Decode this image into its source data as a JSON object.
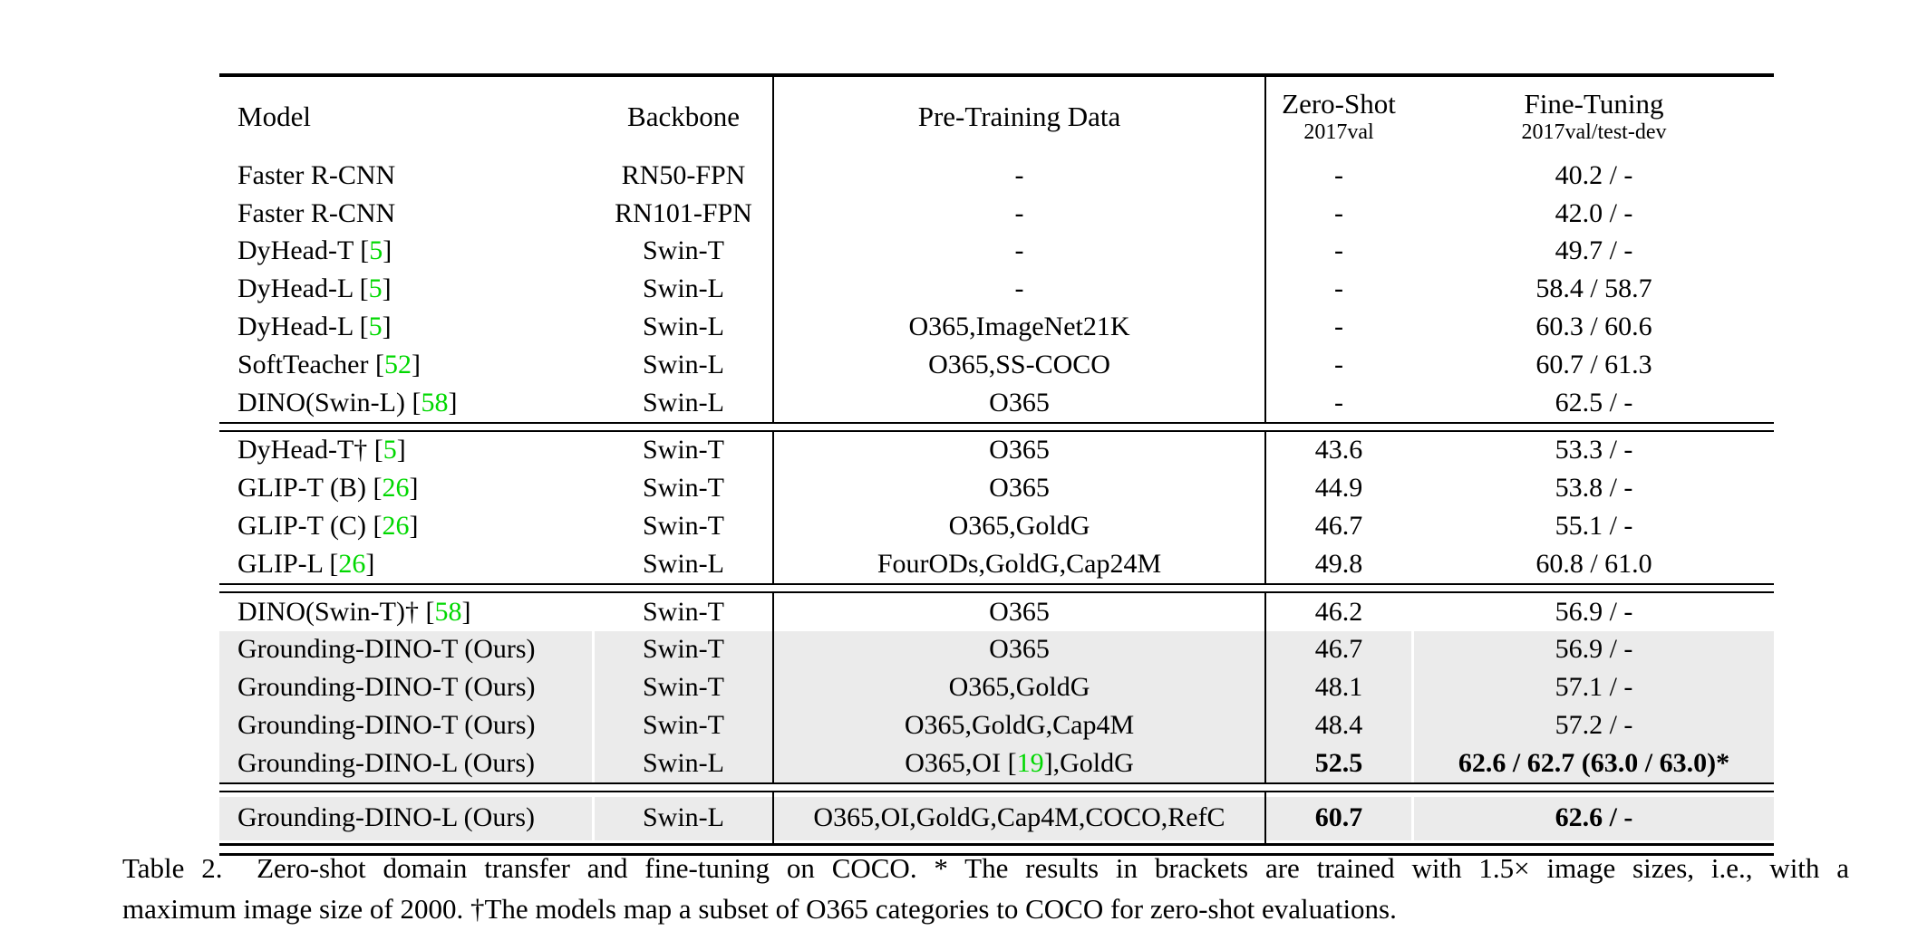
{
  "colors": {
    "citation_green": "#00d800",
    "row_highlight": "#ebebeb",
    "rule": "#000000"
  },
  "table": {
    "header": {
      "model": "Model",
      "backbone": "Backbone",
      "pretrain": "Pre-Training Data",
      "zeroshot": {
        "line1": "Zero-Shot",
        "line2": "2017val"
      },
      "finetune": {
        "line1": "Fine-Tuning",
        "line2": "2017val/test-dev"
      }
    },
    "blocks": [
      {
        "separate": false,
        "rows": [
          {
            "model": "Faster R-CNN",
            "backbone": "RN50-FPN",
            "pretrain": "-",
            "zeroshot": "-",
            "finetune": "40.2 / -"
          },
          {
            "model": "Faster R-CNN",
            "backbone": "RN101-FPN",
            "pretrain": "-",
            "zeroshot": "-",
            "finetune": "42.0 / -"
          },
          {
            "model": "DyHead-T [[5]]",
            "backbone": "Swin-T",
            "pretrain": "-",
            "zeroshot": "-",
            "finetune": "49.7 / -"
          },
          {
            "model": "DyHead-L [[5]]",
            "backbone": "Swin-L",
            "pretrain": "-",
            "zeroshot": "-",
            "finetune": "58.4 / 58.7"
          },
          {
            "model": "DyHead-L [[5]]",
            "backbone": "Swin-L",
            "pretrain": "O365,ImageNet21K",
            "zeroshot": "-",
            "finetune": "60.3 / 60.6"
          },
          {
            "model": "SoftTeacher [[52]]",
            "backbone": "Swin-L",
            "pretrain": "O365,SS-COCO",
            "zeroshot": "-",
            "finetune": "60.7 / 61.3"
          },
          {
            "model": "DINO(Swin-L) [[58]]",
            "backbone": "Swin-L",
            "pretrain": "O365",
            "zeroshot": "-",
            "finetune": "62.5 / -"
          }
        ]
      },
      {
        "separate": false,
        "rows": [
          {
            "model": "DyHead-T† [[5]]",
            "backbone": "Swin-T",
            "pretrain": "O365",
            "zeroshot": "43.6",
            "finetune": "53.3 / -"
          },
          {
            "model": "GLIP-T (B) [[26]]",
            "backbone": "Swin-T",
            "pretrain": "O365",
            "zeroshot": "44.9",
            "finetune": "53.8 / -"
          },
          {
            "model": "GLIP-T (C) [[26]]",
            "backbone": "Swin-T",
            "pretrain": "O365,GoldG",
            "zeroshot": "46.7",
            "finetune": "55.1 / -"
          },
          {
            "model": "GLIP-L [[26]]",
            "backbone": "Swin-L",
            "pretrain": "FourODs,GoldG,Cap24M",
            "zeroshot": "49.8",
            "finetune": "60.8 / 61.0"
          }
        ]
      },
      {
        "separate": false,
        "rows": [
          {
            "model": "DINO(Swin-T)† [[58]]",
            "backbone": "Swin-T",
            "pretrain": "O365",
            "zeroshot": "46.2",
            "finetune": "56.9 / -"
          },
          {
            "model": "Grounding-DINO-T (Ours)",
            "backbone": "Swin-T",
            "pretrain": "O365",
            "zeroshot": "46.7",
            "finetune": "56.9 / -",
            "highlight": true
          },
          {
            "model": "Grounding-DINO-T (Ours)",
            "backbone": "Swin-T",
            "pretrain": "O365,GoldG",
            "zeroshot": "48.1",
            "finetune": "57.1 / -",
            "highlight": true
          },
          {
            "model": "Grounding-DINO-T (Ours)",
            "backbone": "Swin-T",
            "pretrain": "O365,GoldG,Cap4M",
            "zeroshot": "48.4",
            "finetune": "57.2 / -",
            "highlight": true
          },
          {
            "model": "Grounding-DINO-L (Ours)",
            "backbone": "Swin-L",
            "pretrain": "O365,OI [[19]],GoldG",
            "zeroshot": "52.5",
            "finetune": "62.6 / 62.7 (63.0 / 63.0)*",
            "highlight": true,
            "bold_zeroshot": true,
            "bold_finetune": true
          }
        ]
      },
      {
        "separate": true,
        "rows": [
          {
            "model": "Grounding-DINO-L (Ours)",
            "backbone": "Swin-L",
            "pretrain": "O365,OI,GoldG,Cap4M,COCO,RefC",
            "zeroshot": "60.7",
            "finetune": "62.6 / -",
            "highlight": true,
            "bold_zeroshot": true,
            "bold_finetune": true
          }
        ]
      }
    ]
  },
  "caption": {
    "line1": "Table 2.  Zero-shot domain transfer and fine-tuning on COCO. * The results in brackets are trained with 1.5× image sizes, i.e., with a",
    "line2": "maximum image size of 2000. †The models map a subset of O365 categories to COCO for zero-shot evaluations."
  }
}
